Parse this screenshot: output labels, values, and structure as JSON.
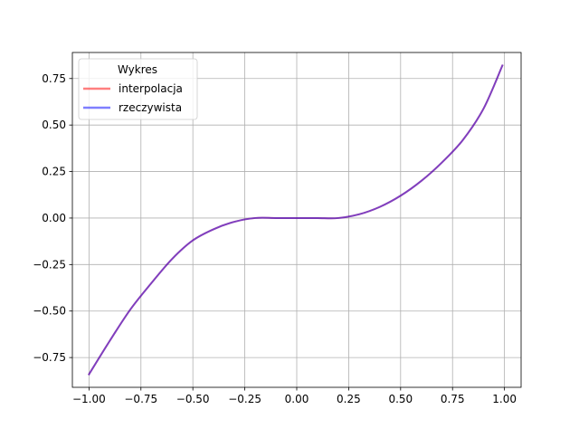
{
  "chart_data": {
    "type": "line",
    "title": "",
    "xlabel": "",
    "ylabel": "",
    "xlim": [
      -1.08,
      1.08
    ],
    "ylim": [
      -0.91,
      0.89
    ],
    "grid": true,
    "legend": {
      "title": "Wykres",
      "position": "top-left",
      "entries": [
        "interpolacja",
        "rzeczywista"
      ]
    },
    "xticks": [
      -1.0,
      -0.75,
      -0.5,
      -0.25,
      0.0,
      0.25,
      0.5,
      0.75,
      1.0
    ],
    "xtick_labels": [
      "−1.00",
      "−0.75",
      "−0.50",
      "−0.25",
      "0.00",
      "0.25",
      "0.50",
      "0.75",
      "1.00"
    ],
    "yticks": [
      -0.75,
      -0.5,
      -0.25,
      0.0,
      0.25,
      0.5,
      0.75
    ],
    "ytick_labels": [
      "−0.75",
      "−0.50",
      "−0.25",
      "0.00",
      "0.25",
      "0.50",
      "0.75"
    ],
    "x": [
      -1.0,
      -0.9,
      -0.8,
      -0.7,
      -0.6,
      -0.5,
      -0.4,
      -0.3,
      -0.2,
      -0.1,
      0.0,
      0.1,
      0.2,
      0.3,
      0.4,
      0.5,
      0.6,
      0.7,
      0.8,
      0.9,
      0.99
    ],
    "series": [
      {
        "name": "interpolacja",
        "color": "#ff0000",
        "alpha": 0.5,
        "values": [
          -0.84,
          -0.66,
          -0.49,
          -0.35,
          -0.22,
          -0.12,
          -0.06,
          -0.02,
          0.0,
          0.0,
          0.0,
          0.0,
          0.0,
          0.02,
          0.06,
          0.12,
          0.2,
          0.3,
          0.42,
          0.59,
          0.82
        ]
      },
      {
        "name": "rzeczywista",
        "color": "#0000ff",
        "alpha": 0.5,
        "values": [
          -0.84,
          -0.66,
          -0.49,
          -0.35,
          -0.22,
          -0.12,
          -0.06,
          -0.02,
          0.0,
          0.0,
          0.0,
          0.0,
          0.0,
          0.02,
          0.06,
          0.12,
          0.2,
          0.3,
          0.42,
          0.59,
          0.82
        ]
      }
    ]
  }
}
